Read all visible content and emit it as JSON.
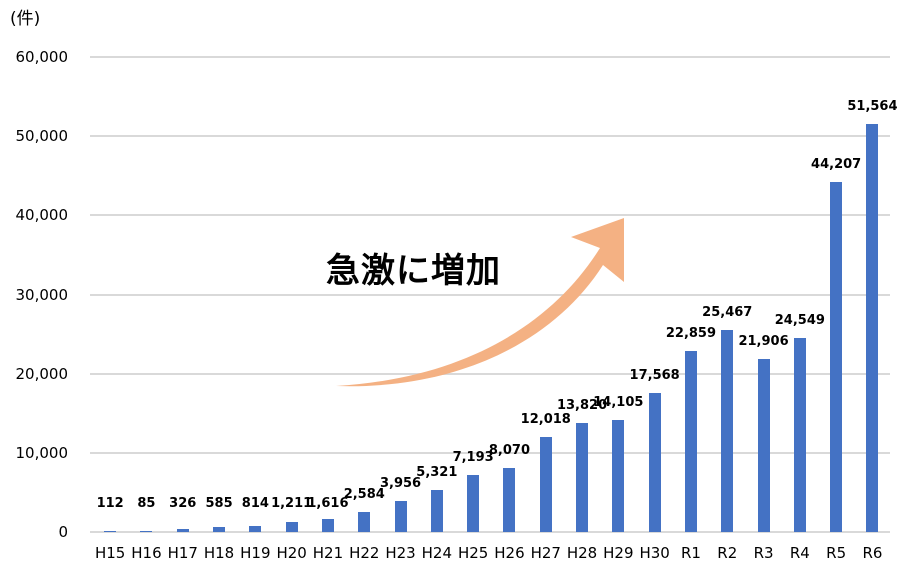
{
  "chart_data": {
    "type": "bar",
    "title": "",
    "xlabel": "",
    "ylabel": "(件)",
    "ylim": [
      0,
      60000
    ],
    "yticks": [
      "0",
      "10,000",
      "20,000",
      "30,000",
      "40,000",
      "50,000",
      "60,000"
    ],
    "ytick_values": [
      0,
      10000,
      20000,
      30000,
      40000,
      50000,
      60000
    ],
    "grid": true,
    "legend": null,
    "bar_color": "#4472c4",
    "categories": [
      "H15",
      "H16",
      "H17",
      "H18",
      "H19",
      "H20",
      "H21",
      "H22",
      "H23",
      "H24",
      "H25",
      "H26",
      "H27",
      "H28",
      "H29",
      "H30",
      "R1",
      "R2",
      "R3",
      "R4",
      "R5",
      "R6"
    ],
    "values": [
      112,
      85,
      326,
      585,
      814,
      1211,
      1616,
      2584,
      3956,
      5321,
      7193,
      8070,
      12018,
      13820,
      14105,
      17568,
      22859,
      25467,
      21906,
      24549,
      44207,
      51564
    ],
    "value_labels": [
      "112",
      "85",
      "326",
      "585",
      "814",
      "1,211",
      "1,616",
      "2,584",
      "3,956",
      "5,321",
      "7,193",
      "8,070",
      "12,018",
      "13,820",
      "14,105",
      "17,568",
      "22,859",
      "25,467",
      "21,906",
      "24,549",
      "44,207",
      "51,564"
    ],
    "annotations": [
      {
        "text": "急激に増加",
        "type": "text"
      },
      {
        "text": "",
        "type": "curved-arrow",
        "color": "#f4b183",
        "direction": "up-right"
      }
    ]
  },
  "axis": {
    "unit_label": "(件)"
  },
  "annotation": {
    "text": "急激に増加",
    "arrow_color": "#f4b183"
  }
}
